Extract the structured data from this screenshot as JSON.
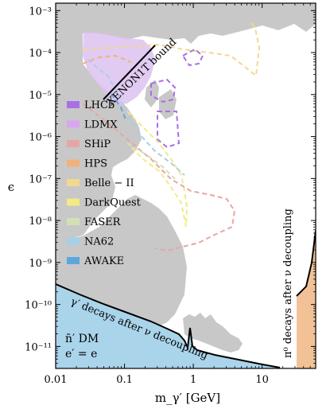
{
  "chart_data": {
    "type": "line",
    "title": "",
    "xlabel": "m_γ′ [GeV]",
    "ylabel": "ϵ",
    "x_scale": "log",
    "y_scale": "log",
    "xlim": [
      0.01,
      60
    ],
    "ylim": [
      3e-12,
      0.0015
    ],
    "x_ticks": [
      {
        "value": 0.01,
        "label": "0.01"
      },
      {
        "value": 0.1,
        "label": "0.1"
      },
      {
        "value": 1,
        "label": "1"
      },
      {
        "value": 10,
        "label": "10"
      }
    ],
    "y_ticks": [
      {
        "value": 1e-11,
        "label": "10⁻¹¹"
      },
      {
        "value": 1e-10,
        "label": "10⁻¹⁰"
      },
      {
        "value": 1e-09,
        "label": "10⁻⁹"
      },
      {
        "value": 1e-08,
        "label": "10⁻⁸"
      },
      {
        "value": 1e-07,
        "label": "10⁻⁷"
      },
      {
        "value": 1e-06,
        "label": "10⁻⁶"
      },
      {
        "value": 1e-05,
        "label": "10⁻⁵"
      },
      {
        "value": 0.0001,
        "label": "10⁻⁴"
      },
      {
        "value": 0.001,
        "label": "10⁻³"
      }
    ],
    "legend_placement": "center-left",
    "series": [
      {
        "name": "LHCb",
        "color": "#a86fe6",
        "style": "dashed",
        "x": [
          0.2,
          0.22,
          0.25,
          0.28,
          0.3,
          0.3,
          0.27,
          0.23,
          0.2,
          0.2
        ],
        "y": [
          3e-05,
          2e-05,
          1.5e-05,
          1.6e-05,
          2.5e-05,
          4e-05,
          5e-05,
          5e-05,
          4e-05,
          3e-05
        ]
      },
      {
        "name": "LDMX",
        "color": "#d9a6ee",
        "style": "filled",
        "x": [
          0.025,
          0.03,
          0.05,
          0.08,
          0.1,
          0.15,
          0.2,
          0.25,
          0.25,
          0.2,
          0.1,
          0.05,
          0.025
        ],
        "y": [
          0.0003,
          0.0001,
          6e-05,
          4e-05,
          3e-05,
          3e-05,
          4e-05,
          8e-05,
          0.0004,
          0.0008,
          0.001,
          0.0008,
          0.0003
        ]
      },
      {
        "name": "SHiP",
        "color": "#e8a5a5",
        "style": "dashed",
        "x": [
          0.05,
          0.1,
          0.2,
          0.3,
          0.4,
          0.6,
          0.8,
          1.0,
          1.5,
          2.0,
          2.5,
          2.0,
          1.5,
          1.0,
          0.5,
          0.3
        ],
        "y": [
          2e-05,
          8e-06,
          3e-06,
          1.5e-06,
          1e-06,
          5e-07,
          2e-07,
          1e-07,
          7e-08,
          4e-08,
          1.5e-08,
          5e-09,
          3e-09,
          6e-09,
          3e-08,
          2e-07
        ]
      },
      {
        "name": "HPS",
        "color": "#f0b27a",
        "style": "dashed",
        "x": [
          0.025,
          0.05,
          0.1,
          0.15,
          0.2
        ],
        "y": [
          0.0001,
          6e-05,
          5e-05,
          6e-05,
          8e-05
        ]
      },
      {
        "name": "Belle − II",
        "color": "#f3d98d",
        "style": "dashed",
        "x": [
          0.02,
          0.1,
          0.5,
          1,
          2,
          4,
          6,
          8,
          9
        ],
        "y": [
          0.0003,
          0.0002,
          0.00015,
          0.00012,
          0.0001,
          0.0001,
          0.00012,
          0.0005,
          0.001
        ]
      },
      {
        "name": "DarkQuest",
        "color": "#f2ea85",
        "style": "dashed",
        "x": [
          0.2,
          0.4,
          0.7,
          0.9,
          1.0,
          0.9,
          0.7,
          0.5,
          0.3
        ],
        "y": [
          2e-06,
          1e-06,
          5e-07,
          2e-07,
          6e-08,
          3e-08,
          1e-07,
          4e-07,
          1e-06
        ]
      },
      {
        "name": "FASER",
        "color": "#d3e0b5",
        "style": "dashed",
        "x": [
          0.1,
          0.2,
          0.4,
          0.6
        ],
        "y": [
          3e-06,
          1e-06,
          4e-07,
          2e-07
        ]
      },
      {
        "name": "NA62",
        "color": "#a6cfe8",
        "style": "dashed",
        "x": [
          0.05,
          0.1,
          0.2,
          0.4,
          0.6,
          0.8
        ],
        "y": [
          3e-05,
          5e-06,
          1.5e-06,
          6e-07,
          3e-07,
          1.5e-07
        ]
      },
      {
        "name": "AWAKE",
        "color": "#5da6dd",
        "style": "dashed",
        "x": [
          0.05,
          0.2,
          0.5
        ],
        "y": [
          2e-05,
          3e-06,
          6e-07
        ]
      }
    ],
    "regions": [
      {
        "label": "γ′ decays after ν decoupling",
        "color": "#aad4ea"
      },
      {
        "label": "π⁰ decays after ν decoupling",
        "color": "#f2c296"
      },
      {
        "label": "XENON1T bound",
        "color": "#000000"
      }
    ],
    "annotations": [
      {
        "text": "XENON1T bound"
      },
      {
        "text": "γ′ decays after ν decoupling"
      },
      {
        "text": "π⁰ decays after ν decoupling"
      },
      {
        "text": "n̄′ DM"
      },
      {
        "text": "e′ = e"
      }
    ],
    "colors": {
      "excluded_gray": "#c8c8c8",
      "decay_region_blue": "#aad4ea",
      "pion_region_orange": "#f2c296",
      "boundary_black": "#000000"
    }
  }
}
